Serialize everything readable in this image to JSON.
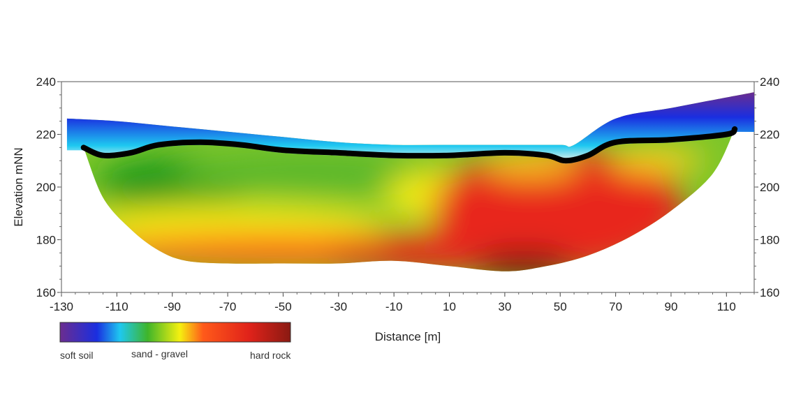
{
  "chart_data": {
    "type": "heatmap",
    "title": "",
    "xlabel": "Distance [m]",
    "ylabel": "Elevation mNN",
    "xlim": [
      -130,
      120
    ],
    "ylim": [
      160,
      240
    ],
    "x_ticks": [
      -130,
      -110,
      -90,
      -70,
      -50,
      -30,
      -10,
      10,
      30,
      50,
      70,
      90,
      110
    ],
    "y_ticks": [
      160,
      180,
      200,
      220,
      240
    ],
    "y_ticks_right": [
      160,
      180,
      200,
      220,
      240
    ],
    "surface_profile": {
      "x": [
        -128,
        -110,
        -90,
        -70,
        -50,
        -30,
        -10,
        10,
        30,
        50,
        55,
        70,
        90,
        110,
        120
      ],
      "y": [
        226,
        225,
        223,
        221,
        219,
        217,
        216,
        216,
        216,
        216,
        216,
        226,
        230,
        234,
        236
      ]
    },
    "interface_line": {
      "x": [
        -122,
        -115,
        -105,
        -95,
        -80,
        -65,
        -50,
        -30,
        -10,
        10,
        30,
        45,
        52,
        60,
        70,
        90,
        110,
        113
      ],
      "y": [
        215,
        212,
        213,
        216,
        217,
        216,
        214,
        213,
        212,
        212,
        213,
        212,
        210,
        212,
        217,
        218,
        220,
        222
      ]
    },
    "section_bottom": {
      "x": [
        -122,
        -115,
        -105,
        -95,
        -85,
        -70,
        -50,
        -30,
        -10,
        10,
        30,
        45,
        60,
        75,
        90,
        105,
        113
      ],
      "y": [
        215,
        196,
        184,
        176,
        172,
        171,
        171,
        171,
        172,
        170,
        168,
        170,
        174,
        181,
        191,
        205,
        222
      ]
    },
    "legend": {
      "type": "colorbar",
      "colors": [
        "#6b2d8f",
        "#1a2ee0",
        "#1ec8f0",
        "#3fb52a",
        "#f5f010",
        "#ff5a1a",
        "#e0221a",
        "#8a1a12"
      ],
      "labels": [
        "soft soil",
        "sand - gravel",
        "hard rock"
      ]
    }
  }
}
